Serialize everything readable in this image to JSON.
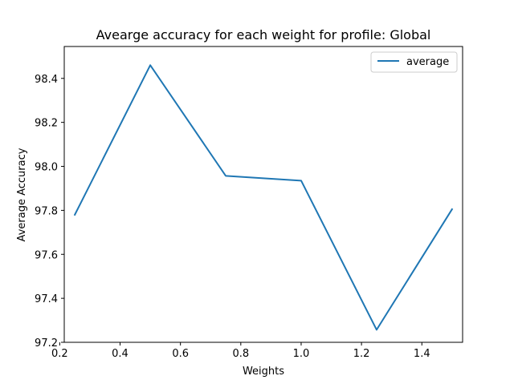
{
  "chart_data": {
    "type": "line",
    "title": "Avearge accuracy for each weight for profile: Global",
    "xlabel": "Weights",
    "ylabel": "Average Accuracy",
    "xlim": [
      0.215,
      1.535
    ],
    "ylim": [
      97.2,
      98.545
    ],
    "xticks": [
      0.2,
      0.4,
      0.6,
      0.8,
      1.0,
      1.2,
      1.4
    ],
    "xtick_labels": [
      "0.2",
      "0.4",
      "0.6",
      "0.8",
      "1.0",
      "1.2",
      "1.4"
    ],
    "yticks": [
      97.2,
      97.4,
      97.6,
      97.8,
      98.0,
      98.2,
      98.4
    ],
    "ytick_labels": [
      "97.2",
      "97.4",
      "97.6",
      "97.8",
      "98.0",
      "98.2",
      "98.4"
    ],
    "grid": false,
    "legend_position": "upper right",
    "series": [
      {
        "name": "average",
        "color": "#1f77b4",
        "x": [
          0.25,
          0.5,
          0.75,
          1.0,
          1.25,
          1.5
        ],
        "y": [
          97.78,
          98.46,
          97.957,
          97.935,
          97.257,
          97.805
        ]
      }
    ]
  }
}
